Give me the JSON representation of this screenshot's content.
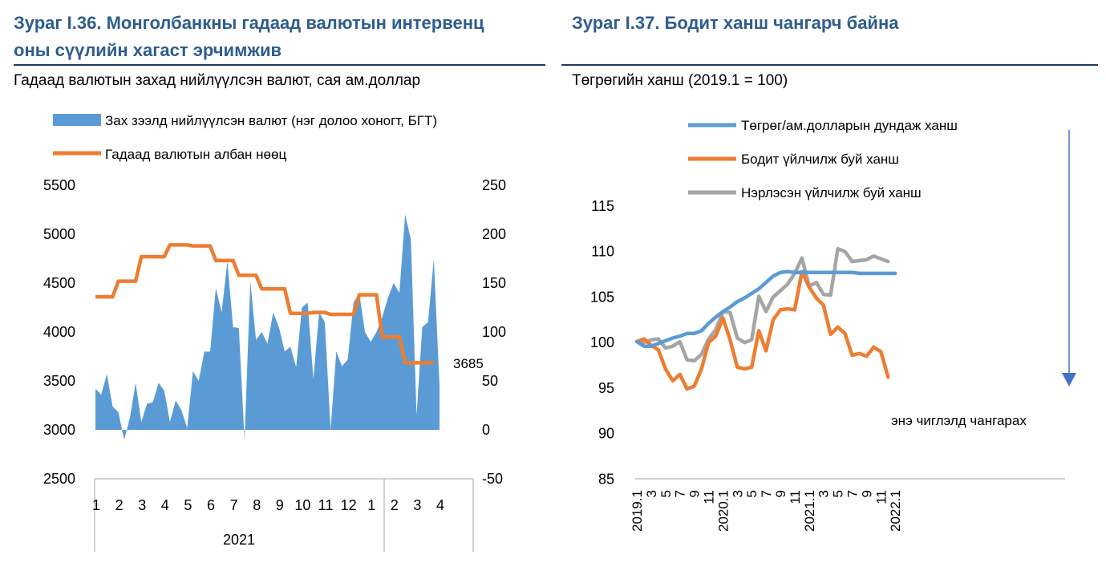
{
  "left_panel": {
    "title_line1": "Зураг I.36. Монголбанкны гадаад валютын интервенц",
    "title_line2": "оны сүүлийн хагаст эрчимжив",
    "subtitle": "Гадаад валютын захад нийлүүлсэн валют, сая ам.доллар",
    "callout": "3685",
    "year_label": "2021"
  },
  "right_panel": {
    "title": "Зураг I.37. Бодит ханш чангарч байна",
    "subtitle": "Төгрөгийн ханш (2019.1 = 100)",
    "arrow_label": "энэ чиглэлд чангарах"
  },
  "chart_data": [
    {
      "type": "bar",
      "title": "Зураг I.36. Монголбанкны гадаад валютын интервенц оны сүүлийн хагаст эрчимжив",
      "subtitle": "Гадаад валютын захад нийлүүлсэн валют, сая ам.доллар",
      "x_tick_labels": [
        "1",
        "2",
        "3",
        "4",
        "5",
        "6",
        "7",
        "8",
        "9",
        "10",
        "11",
        "12",
        "1",
        "2",
        "3",
        "4"
      ],
      "x_group_label": "2021",
      "left_axis": {
        "ticks": [
          "5500",
          "5000",
          "4500",
          "4000",
          "3500",
          "3000",
          "2500"
        ],
        "lim": [
          2500,
          5500
        ]
      },
      "right_axis": {
        "ticks": [
          "250",
          "200",
          "150",
          "100",
          "50",
          "0",
          "-50"
        ],
        "lim": [
          -50,
          250
        ]
      },
      "legend_position": "top",
      "series": [
        {
          "name": "Зах зээлд нийлүүлсэн валют (нэг долоо хоногт, БГТ)",
          "kind": "area",
          "axis": "right",
          "color": "#5b9bd5",
          "x": [
            0,
            0.25,
            0.5,
            0.75,
            1,
            1.25,
            1.5,
            1.75,
            2,
            2.25,
            2.5,
            2.75,
            3,
            3.25,
            3.5,
            3.75,
            4,
            4.25,
            4.5,
            4.75,
            5,
            5.25,
            5.5,
            5.75,
            6,
            6.25,
            6.5,
            6.75,
            7,
            7.25,
            7.5,
            7.75,
            8,
            8.25,
            8.5,
            8.75,
            9,
            9.25,
            9.5,
            9.75,
            10,
            10.25,
            10.5,
            10.75,
            11,
            11.25,
            11.5,
            11.75,
            12,
            12.25,
            12.5,
            12.75,
            13,
            13.25,
            13.5,
            13.75,
            14,
            14.25,
            14.5,
            14.75,
            15
          ],
          "values": [
            42,
            36,
            57,
            24,
            18,
            -10,
            12,
            48,
            8,
            27,
            28,
            48,
            40,
            8,
            30,
            20,
            2,
            60,
            50,
            80,
            80,
            145,
            120,
            172,
            105,
            104,
            -10,
            152,
            92,
            100,
            88,
            120,
            105,
            80,
            85,
            64,
            125,
            130,
            52,
            120,
            110,
            0,
            80,
            65,
            72,
            130,
            140,
            100,
            90,
            100,
            115,
            135,
            150,
            140,
            220,
            195,
            15,
            105,
            110,
            175,
            45
          ]
        },
        {
          "name": "Гадаад валютын албан нөөц",
          "kind": "line",
          "axis": "left",
          "color": "#ed7d31",
          "x": [
            0,
            0.25,
            0.5,
            0.75,
            1,
            1.25,
            1.5,
            1.75,
            2,
            2.25,
            2.5,
            2.75,
            3,
            3.25,
            3.5,
            3.75,
            4,
            4.25,
            4.5,
            4.75,
            5,
            5.25,
            5.5,
            5.75,
            6,
            6.25,
            6.5,
            6.75,
            7,
            7.25,
            7.5,
            7.75,
            8,
            8.25,
            8.5,
            8.75,
            9,
            9.25,
            9.5,
            9.75,
            10,
            10.25,
            10.5,
            10.75,
            11,
            11.25,
            11.5,
            11.75,
            12,
            12.25,
            12.5,
            12.75,
            13,
            13.25,
            13.5,
            13.75,
            14,
            14.25,
            14.5,
            14.75
          ],
          "values": [
            4360,
            4360,
            4360,
            4360,
            4520,
            4520,
            4520,
            4520,
            4770,
            4770,
            4770,
            4770,
            4770,
            4890,
            4890,
            4890,
            4890,
            4880,
            4880,
            4880,
            4880,
            4730,
            4730,
            4730,
            4730,
            4580,
            4580,
            4580,
            4580,
            4440,
            4440,
            4440,
            4440,
            4440,
            4190,
            4190,
            4190,
            4190,
            4200,
            4200,
            4200,
            4180,
            4180,
            4180,
            4180,
            4180,
            4380,
            4380,
            4380,
            4380,
            3950,
            3950,
            3950,
            3950,
            3685,
            3685,
            3685,
            3685,
            3685,
            3685
          ]
        }
      ]
    },
    {
      "type": "line",
      "title": "Зураг I.37. Бодит ханш чангарч байна",
      "subtitle": "Төгрөгийн ханш (2019.1 = 100)",
      "x_tick_labels": [
        "2019.1",
        "3",
        "5",
        "7",
        "9",
        "11",
        "2020.1",
        "3",
        "5",
        "7",
        "9",
        "11",
        "2021.1",
        "3",
        "5",
        "7",
        "9",
        "11",
        "2022.1"
      ],
      "ylim": [
        85,
        115
      ],
      "y_ticks": [
        "115",
        "110",
        "105",
        "100",
        "95",
        "90",
        "85"
      ],
      "legend_position": "top",
      "series": [
        {
          "name": "Төгрөг/ам.долларын дундаж ханш",
          "color": "#5b9bd5",
          "x": [
            0,
            1,
            2,
            3,
            4,
            5,
            6,
            7,
            8,
            9,
            10,
            11,
            12,
            13,
            14,
            15,
            16,
            17,
            18,
            19,
            20,
            21,
            22,
            23,
            24,
            25,
            26,
            27,
            28,
            29,
            30,
            31,
            32,
            33,
            34,
            35,
            36
          ],
          "values": [
            100,
            99.5,
            99.5,
            99.8,
            100.1,
            100.4,
            100.6,
            100.9,
            100.9,
            101.2,
            102.0,
            102.7,
            103.3,
            103.8,
            104.4,
            104.8,
            105.3,
            105.8,
            106.5,
            107.2,
            107.6,
            107.7,
            107.6,
            107.6,
            107.6,
            107.6,
            107.6,
            107.6,
            107.6,
            107.6,
            107.6,
            107.5,
            107.5,
            107.5,
            107.5,
            107.5,
            107.5
          ]
        },
        {
          "name": "Бодит үйлчилж буй ханш",
          "color": "#ed7d31",
          "x": [
            0,
            1,
            2,
            3,
            4,
            5,
            6,
            7,
            8,
            9,
            10,
            11,
            12,
            13,
            14,
            15,
            16,
            17,
            18,
            19,
            20,
            21,
            22,
            23,
            24,
            25,
            26,
            27,
            28,
            29,
            30,
            31,
            32,
            33,
            34,
            35
          ],
          "values": [
            100,
            100.3,
            99.6,
            99.1,
            97.0,
            95.7,
            96.4,
            94.8,
            95.1,
            97.0,
            99.9,
            100.6,
            102.6,
            100.2,
            97.2,
            97.0,
            97.2,
            101.2,
            99.0,
            102.4,
            103.5,
            103.6,
            103.5,
            107.7,
            106.0,
            104.8,
            104.0,
            100.8,
            101.6,
            100.9,
            98.5,
            98.7,
            98.4,
            99.4,
            98.9,
            96.1
          ]
        },
        {
          "name": "Нэрлэсэн үйлчилж буй ханш",
          "color": "#a5a5a5",
          "x": [
            0,
            1,
            2,
            3,
            4,
            5,
            6,
            7,
            8,
            9,
            10,
            11,
            12,
            13,
            14,
            15,
            16,
            17,
            18,
            19,
            20,
            21,
            22,
            23,
            24,
            25,
            26,
            27,
            28,
            29,
            30,
            31,
            32,
            33,
            34,
            35
          ],
          "values": [
            100,
            99.9,
            100.2,
            100.3,
            99.3,
            99.5,
            100.0,
            98.0,
            97.9,
            98.6,
            100.3,
            101.3,
            103.3,
            103.2,
            100.4,
            99.9,
            100.2,
            105.0,
            103.3,
            104.9,
            105.6,
            106.3,
            107.5,
            109.2,
            106.1,
            106.5,
            105.2,
            105.1,
            110.2,
            109.9,
            108.8,
            108.9,
            109.0,
            109.4,
            109.1,
            108.8
          ]
        }
      ]
    }
  ]
}
